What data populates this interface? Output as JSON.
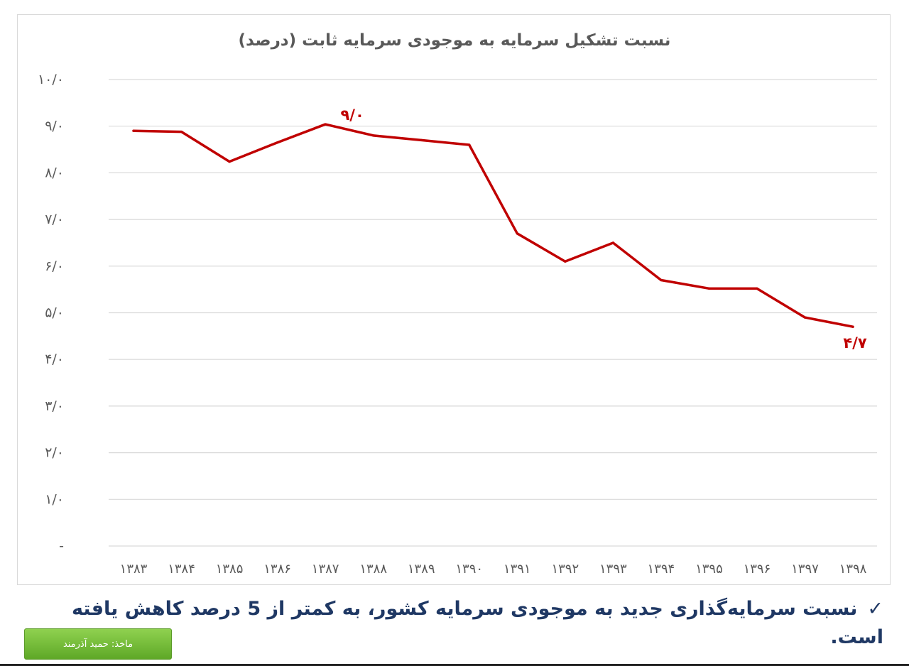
{
  "chart_data": {
    "type": "line",
    "title": "نسبت تشکیل سرمایه به موجودی سرمایه ثابت (درصد)",
    "categories": [
      "۱۳۸۳",
      "۱۳۸۴",
      "۱۳۸۵",
      "۱۳۸۶",
      "۱۳۸۷",
      "۱۳۸۸",
      "۱۳۸۹",
      "۱۳۹۰",
      "۱۳۹۱",
      "۱۳۹۲",
      "۱۳۹۳",
      "۱۳۹۴",
      "۱۳۹۵",
      "۱۳۹۶",
      "۱۳۹۷",
      "۱۳۹۸"
    ],
    "series": [
      {
        "values": [
          8.9,
          8.88,
          8.24,
          8.65,
          9.04,
          8.8,
          8.7,
          8.6,
          6.7,
          6.1,
          6.5,
          5.7,
          5.52,
          5.52,
          4.9,
          4.7
        ]
      }
    ],
    "data_labels": [
      {
        "index": 4,
        "text": "۹/۰"
      },
      {
        "index": 15,
        "text": "۴/۷"
      }
    ],
    "y_ticks": [
      {
        "value": 0,
        "label": "-"
      },
      {
        "value": 1,
        "label": "۱/۰"
      },
      {
        "value": 2,
        "label": "۲/۰"
      },
      {
        "value": 3,
        "label": "۳/۰"
      },
      {
        "value": 4,
        "label": "۴/۰"
      },
      {
        "value": 5,
        "label": "۵/۰"
      },
      {
        "value": 6,
        "label": "۶/۰"
      },
      {
        "value": 7,
        "label": "۷/۰"
      },
      {
        "value": 8,
        "label": "۸/۰"
      },
      {
        "value": 9,
        "label": "۹/۰"
      },
      {
        "value": 10,
        "label": "۱۰/۰"
      }
    ],
    "ylim": [
      0,
      10
    ],
    "grid": true,
    "line_color": "#c00000",
    "grid_color": "#d9d9d9",
    "tick_color": "#595959"
  },
  "caption": {
    "check_icon": "✓",
    "text": "نسبت سرمایه‌گذاری جدید به موجودی سرمایه کشور، به کمتر از 5 درصد کاهش یافته است."
  },
  "source": {
    "label": "ماخذ: حمید آذرمند",
    "color": "#6fbf35"
  }
}
